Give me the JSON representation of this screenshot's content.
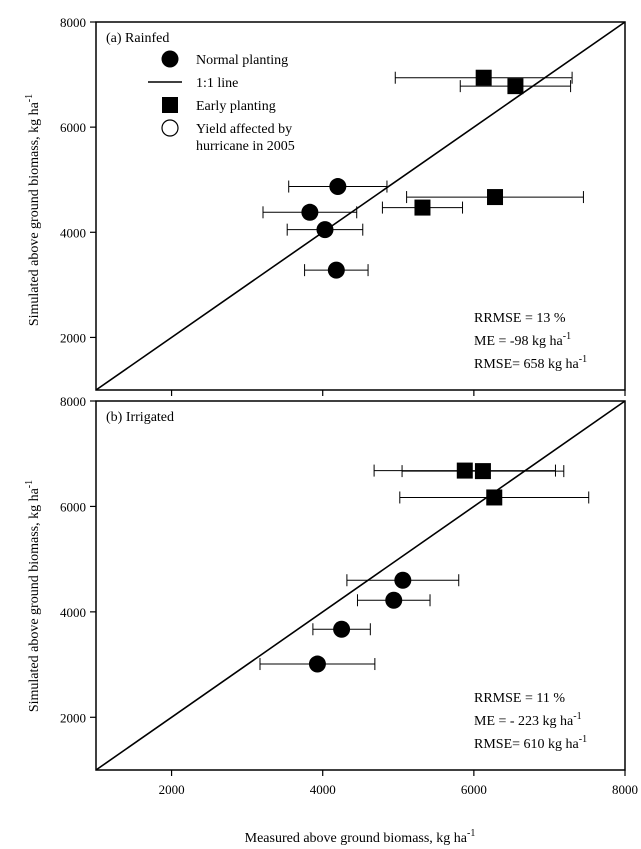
{
  "chart_data": [
    {
      "type": "scatter",
      "panel_label": "(a) Rainfed",
      "xlim": [
        1000,
        8000
      ],
      "ylim": [
        1000,
        8000
      ],
      "x_ticks": [
        2000,
        4000,
        6000,
        8000
      ],
      "y_ticks": [
        "2000",
        "4000",
        "6000",
        "8000"
      ],
      "one_to_one_line": true,
      "legend": {
        "placement": "top-left",
        "items": [
          {
            "marker": "circle-filled",
            "label": "Normal planting"
          },
          {
            "marker": "line",
            "label": "1:1 line"
          },
          {
            "marker": "square-filled",
            "label": "Early planting"
          },
          {
            "marker": "circle-open",
            "label": "Yield affected by",
            "label2": "hurricane in 2005"
          }
        ]
      },
      "series": [
        {
          "name": "Normal planting",
          "marker": "circle-filled",
          "points": [
            {
              "x": 4200,
              "y": 4870,
              "xerr": 650
            },
            {
              "x": 3830,
              "y": 4380,
              "xerr": 620
            },
            {
              "x": 4030,
              "y": 4050,
              "xerr": 500
            },
            {
              "x": 4180,
              "y": 3280,
              "xerr": 420
            }
          ]
        },
        {
          "name": "Early planting",
          "marker": "square-filled",
          "points": [
            {
              "x": 6130,
              "y": 6940,
              "xerr": 1170
            },
            {
              "x": 6550,
              "y": 6780,
              "xerr": 730
            },
            {
              "x": 6280,
              "y": 4670,
              "xerr": 1170
            },
            {
              "x": 5320,
              "y": 4470,
              "xerr": 530
            }
          ]
        }
      ],
      "stats": [
        {
          "text": "RRMSE = 13 %",
          "sup": ""
        },
        {
          "text": "ME = -98 kg ha",
          "sup": "-1"
        },
        {
          "text": "RMSE= 658 kg ha",
          "sup": "-1"
        }
      ]
    },
    {
      "type": "scatter",
      "panel_label": "(b) Irrigated",
      "xlim": [
        1000,
        8000
      ],
      "ylim": [
        1000,
        8000
      ],
      "x_ticks": [
        2000,
        4000,
        6000,
        8000
      ],
      "y_ticks": [
        "2000",
        "4000",
        "6000",
        "8000"
      ],
      "x_tick_labels": [
        "2000",
        "4000",
        "6000",
        "8000"
      ],
      "one_to_one_line": true,
      "series": [
        {
          "name": "Normal planting",
          "marker": "circle-filled",
          "points": [
            {
              "x": 5060,
              "y": 4600,
              "xerr": 740
            },
            {
              "x": 4940,
              "y": 4220,
              "xerr": 480
            },
            {
              "x": 4250,
              "y": 3670,
              "xerr": 380
            },
            {
              "x": 3930,
              "y": 3010,
              "xerr": 760
            }
          ]
        },
        {
          "name": "Early planting",
          "marker": "square-filled",
          "points": [
            {
              "x": 5880,
              "y": 6680,
              "xerr": 1200
            },
            {
              "x": 6120,
              "y": 6670,
              "xerr": 1070
            },
            {
              "x": 6270,
              "y": 6170,
              "xerr": 1250
            }
          ]
        }
      ],
      "stats": [
        {
          "text": "RRMSE = 11 %",
          "sup": ""
        },
        {
          "text": "ME = - 223 kg ha",
          "sup": "-1"
        },
        {
          "text": "RMSE= 610 kg ha",
          "sup": "-1"
        }
      ]
    }
  ],
  "axis_titles": {
    "x": "Measured above ground biomass, kg ha",
    "x_sup": "-1",
    "y": "Simulated above ground biomass, kg ha",
    "y_sup": "-1"
  }
}
